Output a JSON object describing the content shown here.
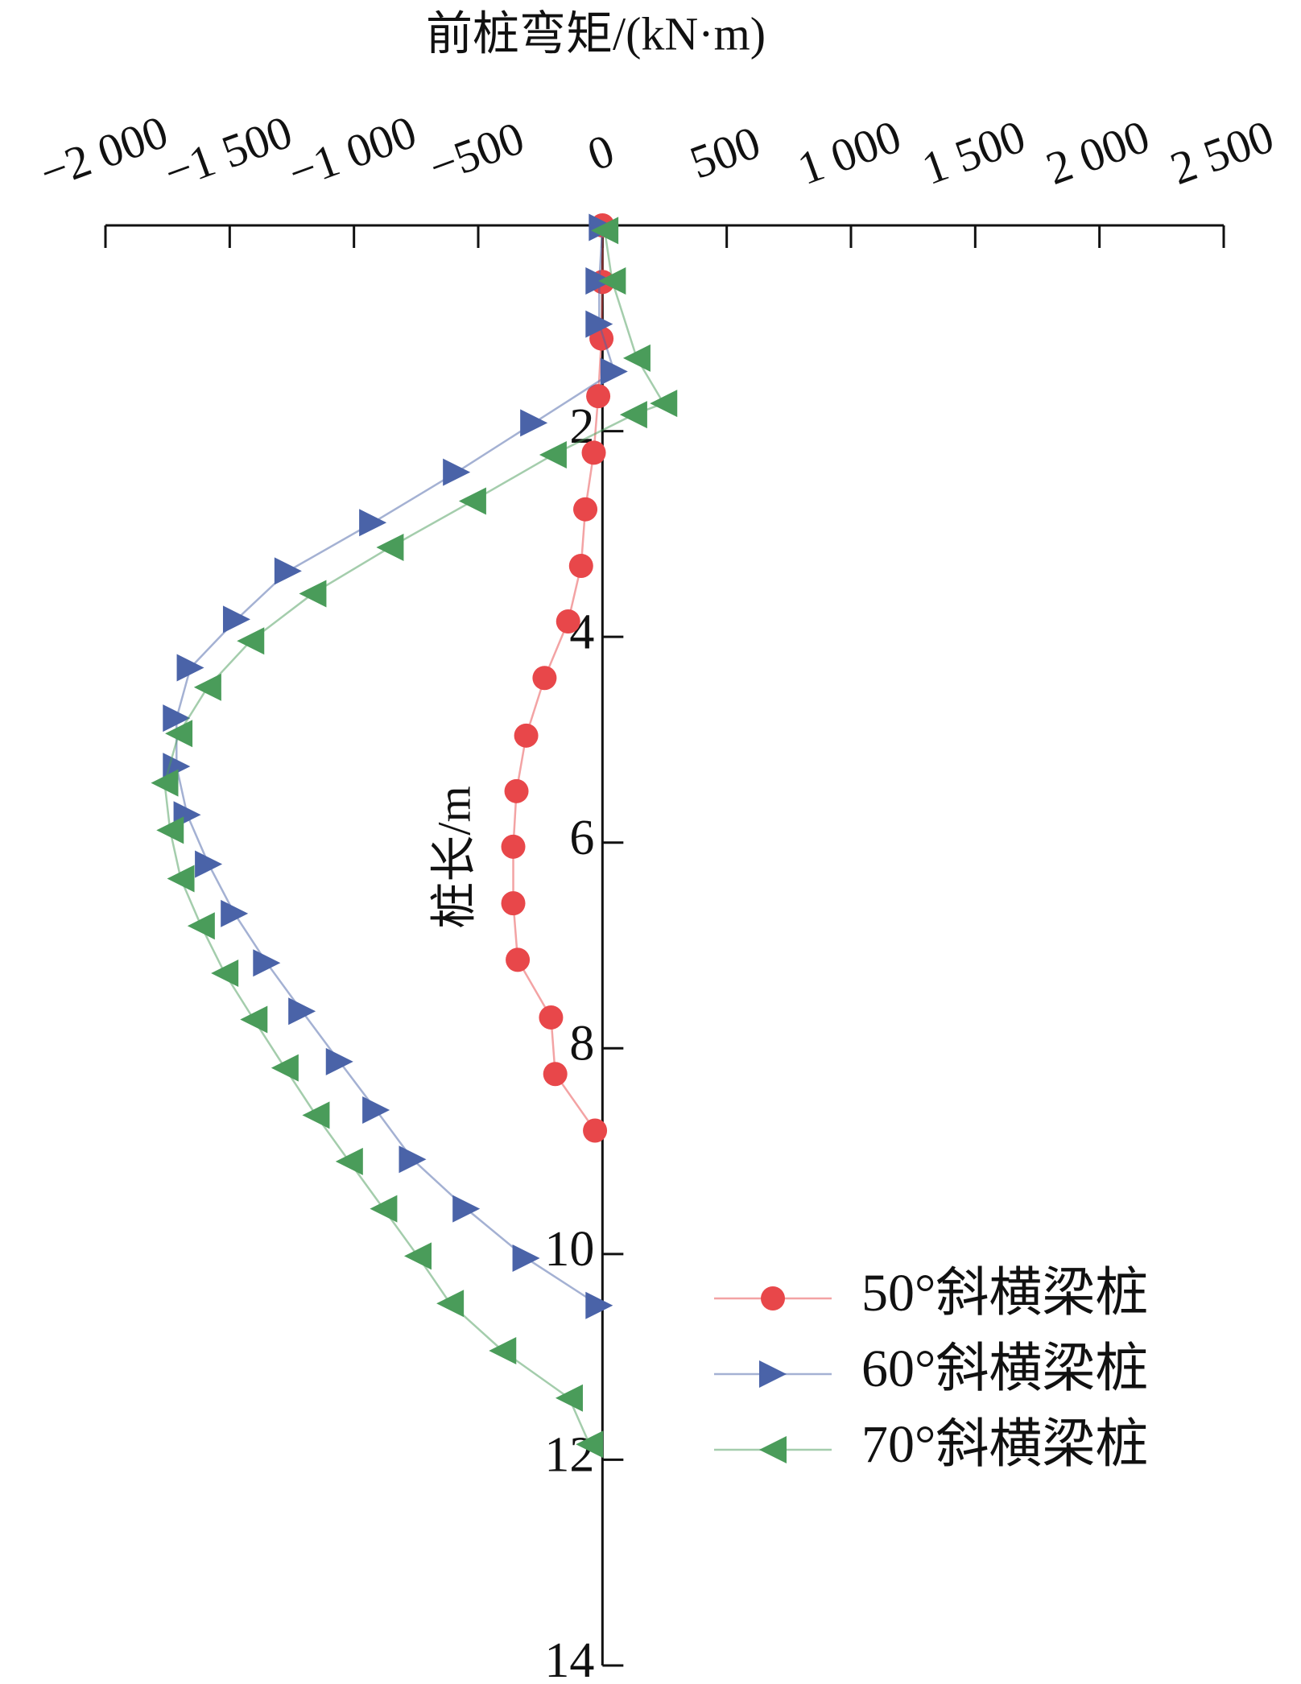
{
  "chart_data": {
    "type": "line",
    "title": "前桩弯矩/(kN·m)",
    "y_label": "桩长/m",
    "xlim": [
      -2000,
      2500
    ],
    "xticks": [
      {
        "value": -2000,
        "label": "−2 000"
      },
      {
        "value": -1500,
        "label": "−1 500"
      },
      {
        "value": -1000,
        "label": "−1 000"
      },
      {
        "value": -500,
        "label": "−500"
      },
      0,
      500,
      {
        "value": 1000,
        "label": "1 000"
      },
      {
        "value": 1500,
        "label": "1 500"
      },
      {
        "value": 2000,
        "label": "2 000"
      },
      {
        "value": 2500,
        "label": "2 500"
      }
    ],
    "ylim": [
      0,
      14
    ],
    "yticks": [
      2,
      4,
      6,
      8,
      10,
      12,
      14
    ],
    "y_inverted": true,
    "x_axis_position": "top",
    "legend": "lower right",
    "series": [
      {
        "name": "50°斜横梁桩",
        "color": "#e8474a",
        "marker": "circle",
        "x": [
          0,
          0,
          -4,
          -17,
          -35,
          -69,
          -86,
          -138,
          -233,
          -307,
          -346,
          -359,
          -359,
          -341,
          -207,
          -190,
          -30
        ],
        "y": [
          0,
          0.55,
          1.1,
          1.66,
          2.21,
          2.76,
          3.31,
          3.85,
          4.4,
          4.96,
          5.5,
          6.04,
          6.59,
          7.14,
          7.7,
          8.25,
          8.8
        ]
      },
      {
        "name": "60°斜横梁桩",
        "color": "#4a63a8",
        "marker": "triangle-right",
        "x": [
          0,
          -13,
          -13,
          47,
          -276,
          -587,
          -924,
          -1265,
          -1472,
          -1658,
          -1714,
          -1714,
          -1671,
          -1585,
          -1481,
          -1351,
          -1209,
          -1058,
          -911,
          -764,
          -548,
          -307,
          -13
        ],
        "y": [
          0.02,
          0.54,
          0.96,
          1.42,
          1.92,
          2.4,
          2.89,
          3.36,
          3.83,
          4.3,
          4.79,
          5.26,
          5.73,
          6.21,
          6.69,
          7.17,
          7.64,
          8.13,
          8.6,
          9.08,
          9.56,
          10.04,
          10.5
        ]
      },
      {
        "name": "70°斜横梁桩",
        "color": "#4a9c5a",
        "marker": "triangle-left",
        "x": [
          9,
          39,
          138,
          246,
          125,
          -199,
          -523,
          -855,
          -1166,
          -1416,
          -1589,
          -1705,
          -1762,
          -1740,
          -1697,
          -1615,
          -1520,
          -1403,
          -1278,
          -1153,
          -1019,
          -881,
          -743,
          -613,
          -402,
          -134,
          -52
        ],
        "y": [
          0.05,
          0.54,
          1.29,
          1.73,
          1.84,
          2.23,
          2.68,
          3.13,
          3.58,
          4.04,
          4.49,
          4.94,
          5.42,
          5.88,
          6.35,
          6.81,
          7.27,
          7.72,
          8.19,
          8.65,
          9.1,
          9.56,
          10.02,
          10.48,
          10.94,
          11.4,
          11.85
        ]
      }
    ]
  }
}
